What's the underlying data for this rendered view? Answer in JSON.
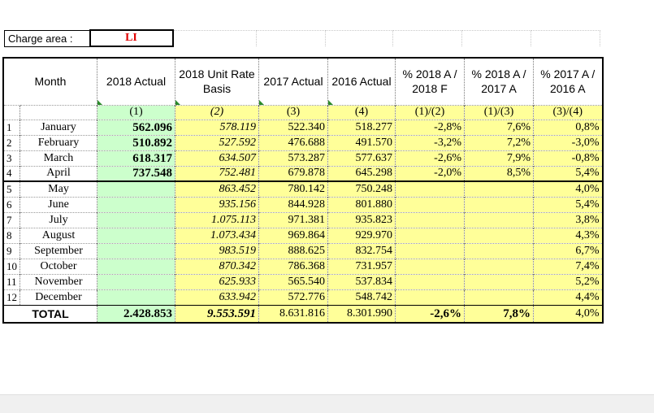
{
  "charge": {
    "label": "Charge area :",
    "value": "LI"
  },
  "headers": {
    "month": "Month",
    "a2018": "2018 Actual",
    "unit2018": "2018 Unit Rate Basis",
    "a2017": "2017 Actual",
    "a2016": "2016 Actual",
    "p1": "% 2018 A / 2018 F",
    "p2": "% 2018 A / 2017 A",
    "p3": "% 2017 A / 2016 A"
  },
  "indices": [
    "(1)",
    "(2)",
    "(3)",
    "(4)",
    "(1)/(2)",
    "(1)/(3)",
    "(3)/(4)"
  ],
  "rows": [
    {
      "n": "1",
      "month": "January",
      "a2018": "562.096",
      "unit": "578.119",
      "a2017": "522.340",
      "a2016": "518.277",
      "p1": "-2,8%",
      "p2": "7,6%",
      "p3": "0,8%"
    },
    {
      "n": "2",
      "month": "February",
      "a2018": "510.892",
      "unit": "527.592",
      "a2017": "476.688",
      "a2016": "491.570",
      "p1": "-3,2%",
      "p2": "7,2%",
      "p3": "-3,0%"
    },
    {
      "n": "3",
      "month": "March",
      "a2018": "618.317",
      "unit": "634.507",
      "a2017": "573.287",
      "a2016": "577.637",
      "p1": "-2,6%",
      "p2": "7,9%",
      "p3": "-0,8%"
    },
    {
      "n": "4",
      "month": "April",
      "a2018": "737.548",
      "unit": "752.481",
      "a2017": "679.878",
      "a2016": "645.298",
      "p1": "-2,0%",
      "p2": "8,5%",
      "p3": "5,4%"
    },
    {
      "n": "5",
      "month": "May",
      "a2018": "",
      "unit": "863.452",
      "a2017": "780.142",
      "a2016": "750.248",
      "p1": "",
      "p2": "",
      "p3": "4,0%"
    },
    {
      "n": "6",
      "month": "June",
      "a2018": "",
      "unit": "935.156",
      "a2017": "844.928",
      "a2016": "801.880",
      "p1": "",
      "p2": "",
      "p3": "5,4%"
    },
    {
      "n": "7",
      "month": "July",
      "a2018": "",
      "unit": "1.075.113",
      "a2017": "971.381",
      "a2016": "935.823",
      "p1": "",
      "p2": "",
      "p3": "3,8%"
    },
    {
      "n": "8",
      "month": "August",
      "a2018": "",
      "unit": "1.073.434",
      "a2017": "969.864",
      "a2016": "929.970",
      "p1": "",
      "p2": "",
      "p3": "4,3%"
    },
    {
      "n": "9",
      "month": "September",
      "a2018": "",
      "unit": "983.519",
      "a2017": "888.625",
      "a2016": "832.754",
      "p1": "",
      "p2": "",
      "p3": "6,7%"
    },
    {
      "n": "10",
      "month": "October",
      "a2018": "",
      "unit": "870.342",
      "a2017": "786.368",
      "a2016": "731.957",
      "p1": "",
      "p2": "",
      "p3": "7,4%"
    },
    {
      "n": "11",
      "month": "November",
      "a2018": "",
      "unit": "625.933",
      "a2017": "565.540",
      "a2016": "537.834",
      "p1": "",
      "p2": "",
      "p3": "5,2%"
    },
    {
      "n": "12",
      "month": "December",
      "a2018": "",
      "unit": "633.942",
      "a2017": "572.776",
      "a2016": "548.742",
      "p1": "",
      "p2": "",
      "p3": "4,4%"
    }
  ],
  "total": {
    "label": "TOTAL",
    "a2018": "2.428.853",
    "unit": "9.553.591",
    "a2017": "8.631.816",
    "a2016": "8.301.990",
    "p1": "-2,6%",
    "p2": "7,8%",
    "p3": "4,0%"
  },
  "colors": {
    "green": "#ccffcc",
    "yellow": "#ffff99",
    "charge_value": "#e00000"
  }
}
